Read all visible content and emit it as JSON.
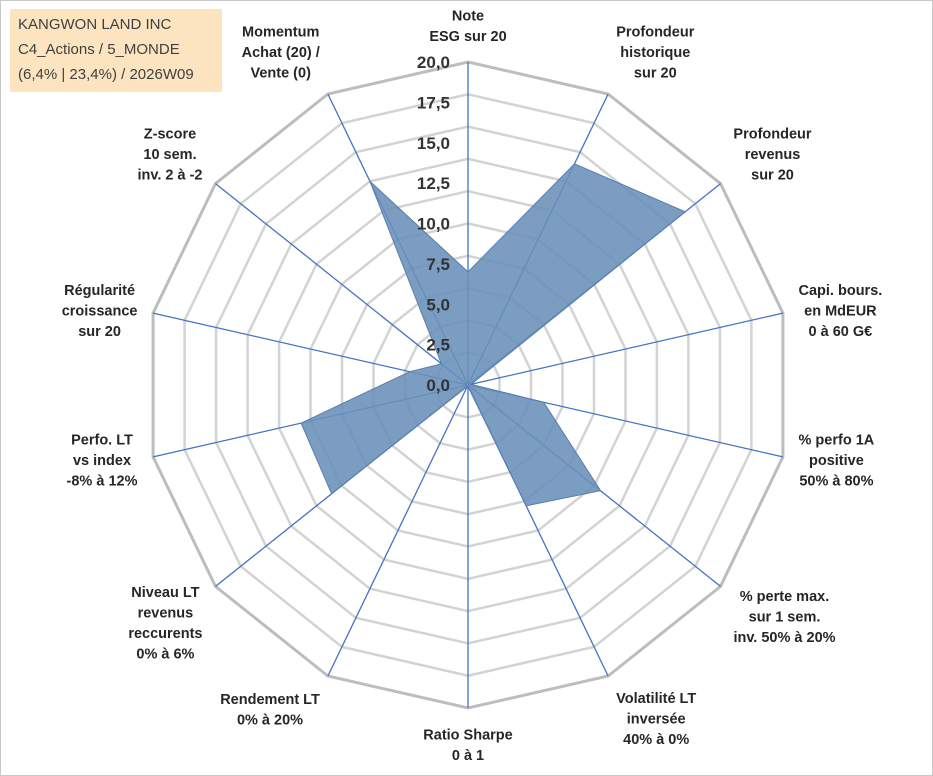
{
  "title_box": {
    "line1": "KANGWON LAND INC",
    "line2": "C4_Actions / 5_MONDE",
    "line3": "(6,4% | 23,4%) / 2026W09"
  },
  "chart_data": {
    "type": "radar",
    "range": [
      0,
      20
    ],
    "ticks": [
      "0,0",
      "2,5",
      "5,0",
      "7,5",
      "10,0",
      "12,5",
      "15,0",
      "17,5",
      "20,0"
    ],
    "grid_rings": 10,
    "series_color": "#6a8fba",
    "axes": [
      {
        "label": [
          "Note",
          "ESG sur 20"
        ],
        "value": 7.0
      },
      {
        "label": [
          "Profondeur",
          "historique",
          "sur 20"
        ],
        "value": 15.2
      },
      {
        "label": [
          "Profondeur",
          "revenus",
          "sur 20"
        ],
        "value": 17.2
      },
      {
        "label": [
          "Capi. bours.",
          "en MdEUR",
          "0 à 60 G€"
        ],
        "value": 0.2
      },
      {
        "label": [
          "% perfo 1A",
          "positive",
          "50% à 80%"
        ],
        "value": 4.8
      },
      {
        "label": [
          "% perte max.",
          "sur 1 sem.",
          "inv. 50% à 20%"
        ],
        "value": 10.5
      },
      {
        "label": [
          "Volatilité LT",
          "inversée",
          "40% à 0%"
        ],
        "value": 8.3
      },
      {
        "label": [
          "Ratio Sharpe",
          "0 à 1"
        ],
        "value": 0.1
      },
      {
        "label": [
          "Rendement LT",
          "0% à 20%"
        ],
        "value": 0.1
      },
      {
        "label": [
          "Niveau LT",
          "revenus",
          "reccurents",
          "0% à 6%"
        ],
        "value": 10.8
      },
      {
        "label": [
          "Perfo. LT",
          "vs index",
          "-8% à 12%"
        ],
        "value": 10.6
      },
      {
        "label": [
          "Régularité",
          "croissance",
          "sur 20"
        ],
        "value": 3.7
      },
      {
        "label": [
          "Z-score",
          "10 sem.",
          "inv. 2 à -2"
        ],
        "value": 2.1
      },
      {
        "label": [
          "Momentum",
          "Achat (20) /",
          "Vente (0)"
        ],
        "value": 14.0
      }
    ]
  }
}
